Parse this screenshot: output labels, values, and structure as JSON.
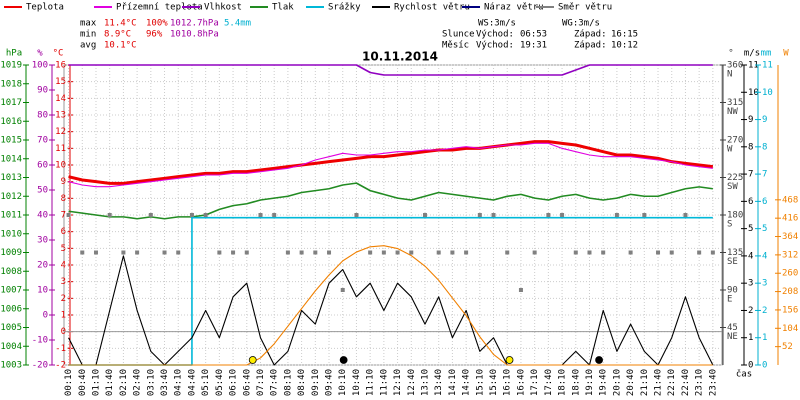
{
  "chart_data": {
    "type": "line",
    "title": "10.11.2014",
    "x_label": "čas",
    "categories": [
      "00:10",
      "00:40",
      "01:10",
      "01:40",
      "02:10",
      "02:40",
      "03:10",
      "03:40",
      "04:10",
      "04:40",
      "05:10",
      "05:40",
      "06:10",
      "06:40",
      "07:10",
      "07:40",
      "08:10",
      "08:40",
      "09:10",
      "09:40",
      "10:10",
      "10:40",
      "11:10",
      "11:40",
      "12:10",
      "12:40",
      "13:10",
      "13:40",
      "14:10",
      "14:40",
      "15:10",
      "15:40",
      "16:10",
      "16:40",
      "17:10",
      "17:40",
      "18:10",
      "18:40",
      "19:10",
      "19:40",
      "20:10",
      "20:40",
      "21:10",
      "21:40",
      "22:10",
      "22:40",
      "23:10",
      "23:40"
    ],
    "axes": {
      "hpa": {
        "label": "hPa",
        "color": "#008000",
        "lim": [
          1003,
          1019
        ],
        "ticks": [
          1003,
          1004,
          1005,
          1006,
          1007,
          1008,
          1009,
          1010,
          1011,
          1012,
          1013,
          1014,
          1015,
          1016,
          1017,
          1018,
          1019
        ]
      },
      "pct": {
        "label": "%",
        "color": "#a000a0",
        "lim": [
          -20,
          100
        ],
        "ticks": [
          -20,
          -10,
          0,
          10,
          20,
          30,
          40,
          50,
          60,
          70,
          80,
          90,
          100
        ]
      },
      "temp": {
        "label": "°C",
        "color": "#e00000",
        "lim": [
          -2,
          16
        ],
        "ticks": [
          -2,
          -1,
          0,
          1,
          2,
          3,
          4,
          5,
          6,
          7,
          8,
          9,
          10,
          11,
          12,
          13,
          14,
          15,
          16
        ]
      },
      "dir": {
        "label": "°",
        "color": "#404040",
        "lim": [
          0,
          360
        ],
        "ticks": [
          45,
          90,
          135,
          180,
          225,
          270,
          315,
          360
        ],
        "compass": [
          "NE",
          "E",
          "SE",
          "S",
          "SW",
          "W",
          "NW",
          "N"
        ]
      },
      "ms": {
        "label": "m/s",
        "color": "#000000",
        "lim": [
          0,
          11
        ],
        "ticks": [
          0,
          1,
          2,
          3,
          4,
          5,
          6,
          7,
          8,
          9,
          10,
          11
        ]
      },
      "mm": {
        "label": "mm",
        "color": "#00b0d0",
        "lim": [
          0,
          11
        ],
        "ticks": [
          0,
          1,
          2,
          3,
          4,
          5,
          6,
          7,
          8,
          9,
          10,
          11
        ]
      },
      "w": {
        "label": "W",
        "color": "#f08000",
        "lim": [
          0,
          850
        ],
        "ticks": [
          52,
          104,
          156,
          208,
          260,
          312,
          364,
          416,
          468
        ]
      }
    },
    "series": [
      {
        "name": "Teplota",
        "color": "#ee0000",
        "axis": "temp",
        "style": "thick",
        "values": [
          9.3,
          9.1,
          9.0,
          8.9,
          8.9,
          9.0,
          9.1,
          9.2,
          9.3,
          9.4,
          9.5,
          9.5,
          9.6,
          9.6,
          9.7,
          9.8,
          9.9,
          10.0,
          10.1,
          10.2,
          10.3,
          10.4,
          10.5,
          10.5,
          10.6,
          10.7,
          10.8,
          10.9,
          10.9,
          11.0,
          11.0,
          11.1,
          11.2,
          11.3,
          11.4,
          11.4,
          11.3,
          11.2,
          11.0,
          10.8,
          10.6,
          10.6,
          10.5,
          10.4,
          10.2,
          10.1,
          10.0,
          9.9
        ]
      },
      {
        "name": "Přízemní teplota",
        "color": "#e000e0",
        "axis": "temp",
        "style": "thin",
        "values": [
          9.0,
          8.8,
          8.7,
          8.7,
          8.8,
          8.9,
          9.0,
          9.1,
          9.2,
          9.3,
          9.4,
          9.4,
          9.5,
          9.5,
          9.6,
          9.7,
          9.8,
          10.0,
          10.3,
          10.5,
          10.7,
          10.6,
          10.6,
          10.7,
          10.8,
          10.8,
          10.9,
          10.9,
          11.0,
          11.1,
          11.0,
          11.1,
          11.2,
          11.2,
          11.3,
          11.3,
          11.0,
          10.8,
          10.6,
          10.5,
          10.5,
          10.5,
          10.4,
          10.3,
          10.2,
          10.0,
          9.9,
          9.8
        ]
      },
      {
        "name": "Vlhkost",
        "color": "#9000c0",
        "axis": "pct",
        "style": "medium",
        "values": [
          100,
          100,
          100,
          100,
          100,
          100,
          100,
          100,
          100,
          100,
          100,
          100,
          100,
          100,
          100,
          100,
          100,
          100,
          100,
          100,
          100,
          100,
          97,
          96,
          96,
          96,
          96,
          96,
          96,
          96,
          96,
          96,
          96,
          96,
          96,
          96,
          96,
          98,
          100,
          100,
          100,
          100,
          100,
          100,
          100,
          100,
          100,
          100
        ]
      },
      {
        "name": "Tlak",
        "color": "#228b22",
        "axis": "hpa",
        "style": "medium",
        "values": [
          1011.2,
          1011.1,
          1011.0,
          1010.9,
          1010.9,
          1010.8,
          1010.9,
          1010.8,
          1010.9,
          1010.9,
          1011.0,
          1011.3,
          1011.5,
          1011.6,
          1011.8,
          1011.9,
          1012.0,
          1012.2,
          1012.3,
          1012.4,
          1012.6,
          1012.7,
          1012.3,
          1012.1,
          1011.9,
          1011.8,
          1012.0,
          1012.2,
          1012.1,
          1012.0,
          1011.9,
          1011.8,
          1012.0,
          1012.1,
          1011.9,
          1011.8,
          1012.0,
          1012.1,
          1011.9,
          1011.8,
          1011.9,
          1012.1,
          1012.0,
          1012.0,
          1012.2,
          1012.4,
          1012.5,
          1012.4
        ]
      },
      {
        "name": "Srážky",
        "color": "#00b8d8",
        "axis": "mm",
        "style": "step",
        "values": [
          0,
          0,
          0,
          0,
          0,
          0,
          0,
          0,
          0,
          5.4,
          5.4,
          5.4,
          5.4,
          5.4,
          5.4,
          5.4,
          5.4,
          5.4,
          5.4,
          5.4,
          5.4,
          5.4,
          5.4,
          5.4,
          5.4,
          5.4,
          5.4,
          5.4,
          5.4,
          5.4,
          5.4,
          5.4,
          5.4,
          5.4,
          5.4,
          5.4,
          5.4,
          5.4,
          5.4,
          5.4,
          5.4,
          5.4,
          5.4,
          5.4,
          5.4,
          5.4,
          5.4,
          5.4
        ]
      },
      {
        "name": "Rychlost větru",
        "color": "#000000",
        "axis": "ms",
        "style": "thin",
        "values": [
          1,
          0,
          0,
          2,
          4,
          2,
          0.5,
          0,
          0.5,
          1,
          2,
          1,
          2.5,
          3,
          1,
          0,
          0.5,
          2,
          1.5,
          3,
          3.5,
          2.5,
          3,
          2,
          3,
          2.5,
          1.5,
          2.5,
          1,
          2,
          0.5,
          1,
          0,
          0,
          0,
          0,
          0,
          0.5,
          0,
          2,
          0.5,
          1.5,
          0.5,
          0,
          1,
          2.5,
          1,
          0
        ]
      },
      {
        "name": "Náraz větru",
        "color": "#000080",
        "axis": "ms",
        "style": "thin",
        "values": [
          null,
          null,
          null,
          null,
          null,
          null,
          null,
          null,
          null,
          null,
          null,
          null,
          null,
          null,
          null,
          null,
          null,
          null,
          null,
          null,
          null,
          null,
          null,
          null,
          null,
          null,
          null,
          null,
          null,
          null,
          null,
          null,
          null,
          null,
          null,
          null,
          null,
          null,
          null,
          null,
          null,
          null,
          null,
          null,
          null,
          null,
          null,
          null
        ]
      },
      {
        "name": "Směr větru",
        "color": "#808080",
        "axis": "dir",
        "style": "dots",
        "values": [
          180,
          135,
          135,
          180,
          135,
          135,
          180,
          135,
          135,
          180,
          180,
          135,
          135,
          135,
          180,
          180,
          135,
          135,
          135,
          135,
          90,
          180,
          135,
          135,
          135,
          135,
          180,
          135,
          135,
          135,
          180,
          180,
          135,
          90,
          135,
          180,
          180,
          135,
          135,
          135,
          180,
          135,
          180,
          135,
          135,
          180,
          135,
          135
        ]
      },
      {
        "name": "Slunce",
        "color": "#f08000",
        "axis": "w",
        "style": "thin",
        "in_legend": false,
        "values": [
          0,
          0,
          0,
          0,
          0,
          0,
          0,
          0,
          0,
          0,
          0,
          0,
          0,
          0,
          20,
          60,
          110,
          160,
          210,
          255,
          295,
          320,
          335,
          338,
          330,
          310,
          280,
          240,
          190,
          140,
          80,
          30,
          0,
          0,
          0,
          0,
          0,
          0,
          0,
          0,
          0,
          0,
          0,
          0,
          0,
          0,
          0,
          0
        ]
      }
    ],
    "stats": [
      {
        "label": "max",
        "temp": "11.4°C",
        "pct": "100%",
        "hpa": "1012.7hPa",
        "mm": "5.4mm"
      },
      {
        "label": "min",
        "temp": "8.9°C",
        "pct": "96%",
        "hpa": "1010.8hPa"
      },
      {
        "label": "avg",
        "temp": "10.1°C"
      }
    ],
    "wind": {
      "ws": "WS:3m/s",
      "wg": "WG:3m/s"
    },
    "sun": {
      "label": "Slunce",
      "rise_label": "Východ:",
      "rise": "06:53",
      "set_label": "Západ:",
      "set": "16:15"
    },
    "moon": {
      "label": "Měsíc",
      "rise_label": "Východ:",
      "rise": "19:31",
      "set_label": "Západ:",
      "set": "10:12"
    }
  }
}
